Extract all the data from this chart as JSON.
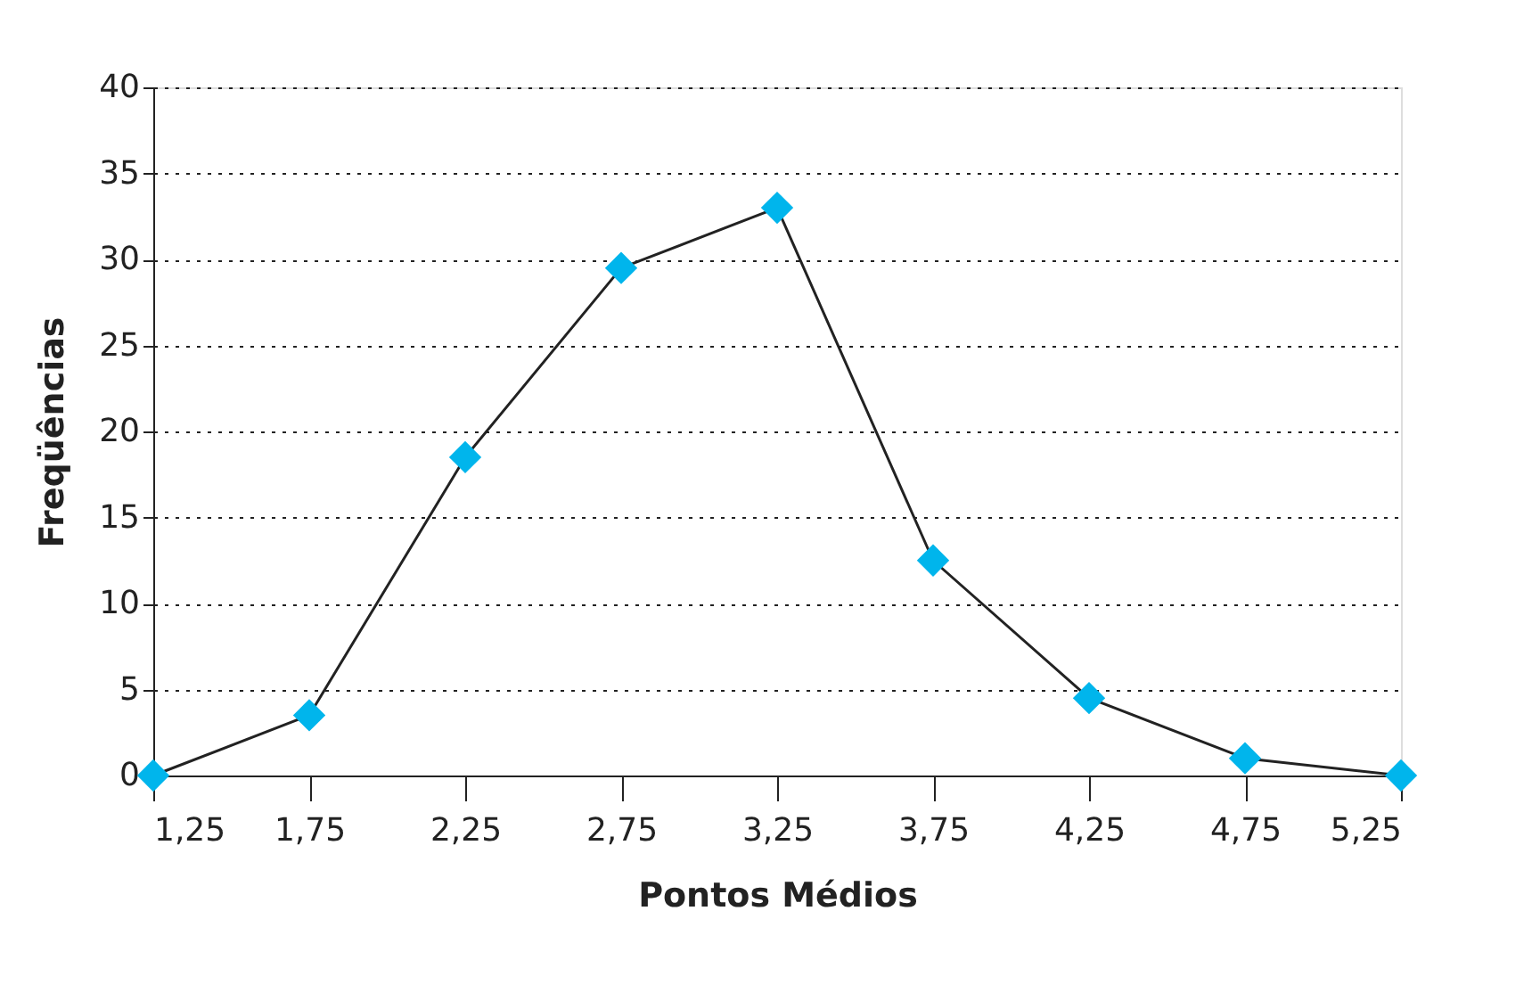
{
  "chart_data": {
    "type": "line",
    "xlabel": "Pontos Médios",
    "ylabel": "Freqüências",
    "x": [
      1.25,
      1.75,
      2.25,
      2.75,
      3.25,
      3.75,
      4.25,
      4.75,
      5.25
    ],
    "series": [
      {
        "color": "#00b5ec",
        "values": [
          0,
          3.5,
          18.5,
          29.5,
          33,
          12.5,
          4.5,
          1,
          0
        ]
      }
    ],
    "xlim": [
      1.25,
      5.25
    ],
    "xticks": [
      {
        "value": 1.25,
        "label": "1,25"
      },
      {
        "value": 1.75,
        "label": "1,75"
      },
      {
        "value": 2.25,
        "label": "2,25"
      },
      {
        "value": 2.75,
        "label": "2,75"
      },
      {
        "value": 3.25,
        "label": "3,25"
      },
      {
        "value": 3.75,
        "label": "3,75"
      },
      {
        "value": 4.25,
        "label": "4,25"
      },
      {
        "value": 4.75,
        "label": "4,75"
      },
      {
        "value": 5.25,
        "label": "5,25"
      }
    ],
    "ylim": [
      0,
      40
    ],
    "yticks": [
      0,
      5,
      10,
      15,
      20,
      25,
      30,
      35,
      40
    ],
    "grid": "y",
    "marker": "diamond",
    "line_style": "solid",
    "legend": false
  }
}
